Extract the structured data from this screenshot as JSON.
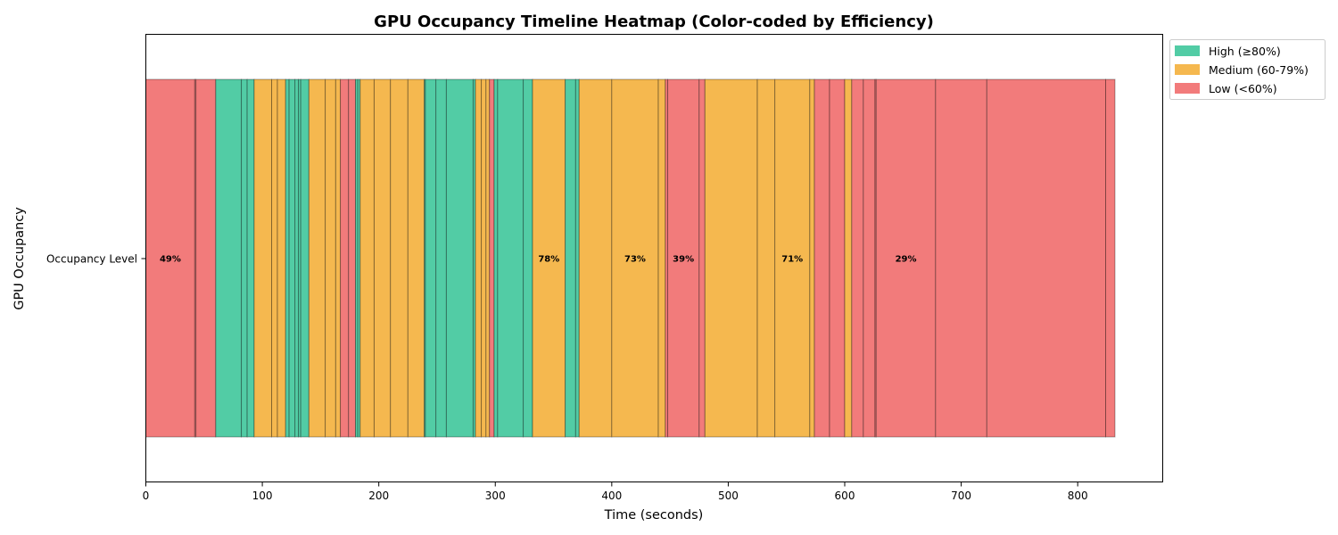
{
  "chart_data": {
    "type": "heatmap",
    "title": "GPU Occupancy Timeline Heatmap (Color-coded by Efficiency)",
    "xlabel": "Time (seconds)",
    "ylabel": "GPU Occupancy",
    "row_label": "Occupancy Level",
    "xlim": [
      0,
      873
    ],
    "xticks": [
      0,
      100,
      200,
      300,
      400,
      500,
      600,
      700,
      800
    ],
    "grid": false,
    "legend_position": "outside top-right",
    "colors": {
      "High": "#52cca5",
      "Medium": "#f5b84f",
      "Low": "#f27b7b"
    },
    "legend": [
      {
        "level": "High",
        "label": "High (≥80%)"
      },
      {
        "level": "Medium",
        "label": "Medium (60-79%)"
      },
      {
        "level": "Low",
        "label": "Low (<60%)"
      }
    ],
    "segments": [
      {
        "start": 0,
        "end": 42,
        "level": "Low",
        "label": "49%"
      },
      {
        "start": 42,
        "end": 43,
        "level": "Low"
      },
      {
        "start": 43,
        "end": 60,
        "level": "Low"
      },
      {
        "start": 60,
        "end": 82,
        "level": "High"
      },
      {
        "start": 82,
        "end": 87,
        "level": "High"
      },
      {
        "start": 87,
        "end": 93,
        "level": "High"
      },
      {
        "start": 93,
        "end": 108,
        "level": "Medium"
      },
      {
        "start": 108,
        "end": 113,
        "level": "Medium"
      },
      {
        "start": 113,
        "end": 120,
        "level": "Medium"
      },
      {
        "start": 120,
        "end": 123,
        "level": "High"
      },
      {
        "start": 123,
        "end": 128,
        "level": "High"
      },
      {
        "start": 128,
        "end": 131,
        "level": "High"
      },
      {
        "start": 131,
        "end": 133,
        "level": "High"
      },
      {
        "start": 133,
        "end": 140,
        "level": "High"
      },
      {
        "start": 140,
        "end": 154,
        "level": "Medium"
      },
      {
        "start": 154,
        "end": 163,
        "level": "Medium"
      },
      {
        "start": 163,
        "end": 167,
        "level": "Medium"
      },
      {
        "start": 167,
        "end": 174,
        "level": "Low"
      },
      {
        "start": 174,
        "end": 180,
        "level": "Low"
      },
      {
        "start": 180,
        "end": 182,
        "level": "High"
      },
      {
        "start": 182,
        "end": 184,
        "level": "High"
      },
      {
        "start": 184,
        "end": 196,
        "level": "Medium"
      },
      {
        "start": 196,
        "end": 210,
        "level": "Medium"
      },
      {
        "start": 210,
        "end": 225,
        "level": "Medium"
      },
      {
        "start": 225,
        "end": 239,
        "level": "Medium"
      },
      {
        "start": 239,
        "end": 240,
        "level": "High"
      },
      {
        "start": 240,
        "end": 249,
        "level": "High"
      },
      {
        "start": 249,
        "end": 258,
        "level": "High"
      },
      {
        "start": 258,
        "end": 281,
        "level": "High"
      },
      {
        "start": 281,
        "end": 283,
        "level": "High"
      },
      {
        "start": 283,
        "end": 288,
        "level": "Medium"
      },
      {
        "start": 288,
        "end": 292,
        "level": "Medium"
      },
      {
        "start": 292,
        "end": 295,
        "level": "Medium"
      },
      {
        "start": 295,
        "end": 299,
        "level": "Low"
      },
      {
        "start": 299,
        "end": 302,
        "level": "High"
      },
      {
        "start": 302,
        "end": 324,
        "level": "High"
      },
      {
        "start": 324,
        "end": 332,
        "level": "High"
      },
      {
        "start": 332,
        "end": 360,
        "level": "Medium",
        "label": "78%"
      },
      {
        "start": 360,
        "end": 369,
        "level": "High"
      },
      {
        "start": 369,
        "end": 372,
        "level": "High"
      },
      {
        "start": 372,
        "end": 400,
        "level": "Medium"
      },
      {
        "start": 400,
        "end": 440,
        "level": "Medium",
        "label": "73%"
      },
      {
        "start": 440,
        "end": 446,
        "level": "Medium"
      },
      {
        "start": 446,
        "end": 448,
        "level": "Low"
      },
      {
        "start": 448,
        "end": 475,
        "level": "Low",
        "label": "39%"
      },
      {
        "start": 475,
        "end": 480,
        "level": "Low"
      },
      {
        "start": 480,
        "end": 525,
        "level": "Medium"
      },
      {
        "start": 525,
        "end": 540,
        "level": "Medium"
      },
      {
        "start": 540,
        "end": 570,
        "level": "Medium",
        "label": "71%"
      },
      {
        "start": 570,
        "end": 574,
        "level": "Medium"
      },
      {
        "start": 574,
        "end": 587,
        "level": "Low"
      },
      {
        "start": 587,
        "end": 600,
        "level": "Low"
      },
      {
        "start": 600,
        "end": 606,
        "level": "Medium"
      },
      {
        "start": 606,
        "end": 616,
        "level": "Low"
      },
      {
        "start": 616,
        "end": 626,
        "level": "Low"
      },
      {
        "start": 626,
        "end": 627,
        "level": "Low"
      },
      {
        "start": 627,
        "end": 678,
        "level": "Low",
        "label": "29%"
      },
      {
        "start": 678,
        "end": 722,
        "level": "Low"
      },
      {
        "start": 722,
        "end": 824,
        "level": "Low"
      },
      {
        "start": 824,
        "end": 832,
        "level": "Low"
      }
    ]
  }
}
